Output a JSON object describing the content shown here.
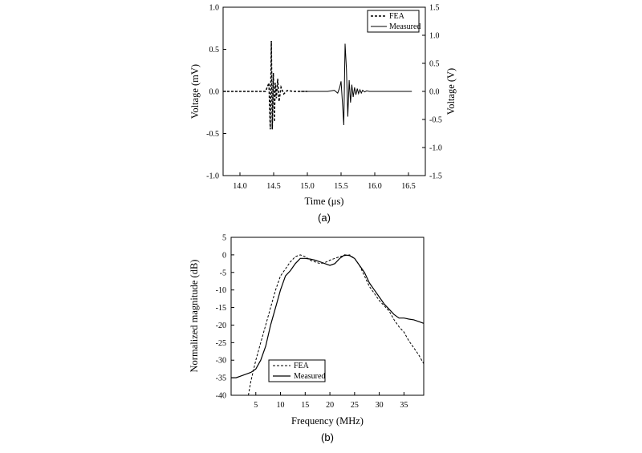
{
  "chart_data": [
    {
      "type": "line",
      "caption": "(a)",
      "xlabel": "Time (μs)",
      "ylabel_left": "Voltage (mV)",
      "ylabel_right": "Voltage (V)",
      "xlim": [
        13.75,
        16.75
      ],
      "ylim_left": [
        -1.0,
        1.0
      ],
      "ylim_right": [
        -1.5,
        1.5
      ],
      "xticks": [
        "14.0",
        "14.5",
        "15.0",
        "15.5",
        "16.0",
        "16.5"
      ],
      "yticks_left": [
        "-1.0",
        "-0.5",
        "0.0",
        "0.5",
        "1.0"
      ],
      "yticks_right": [
        "-1.5",
        "-1.0",
        "-0.5",
        "0.0",
        "0.5",
        "1.0",
        "1.5"
      ],
      "grid": false,
      "legend_position": "top-right",
      "series": [
        {
          "name": "FEA",
          "axis": "left",
          "style": "dashed",
          "x": [
            13.75,
            14.38,
            14.41,
            14.43,
            14.45,
            14.465,
            14.48,
            14.495,
            14.51,
            14.525,
            14.54,
            14.56,
            14.58,
            14.61,
            14.65,
            14.7,
            14.8,
            14.9,
            15.0
          ],
          "y": [
            0.0,
            0.0,
            0.06,
            0.1,
            -0.45,
            0.6,
            -0.45,
            0.22,
            -0.36,
            0.1,
            -0.08,
            0.15,
            -0.12,
            0.05,
            -0.03,
            0.01,
            0.0,
            0.0,
            0.0
          ]
        },
        {
          "name": "Measured",
          "axis": "right",
          "style": "solid",
          "x": [
            14.9,
            15.3,
            15.4,
            15.45,
            15.48,
            15.5,
            15.52,
            15.54,
            15.56,
            15.58,
            15.6,
            15.62,
            15.64,
            15.66,
            15.68,
            15.7,
            15.72,
            15.74,
            15.76,
            15.78,
            15.8,
            15.82,
            15.85,
            15.88,
            15.92,
            16.0,
            16.55
          ],
          "y": [
            0.0,
            0.0,
            0.02,
            -0.03,
            0.07,
            0.18,
            -0.2,
            -0.6,
            0.85,
            0.4,
            -0.45,
            0.2,
            -0.2,
            0.12,
            -0.1,
            0.07,
            -0.06,
            0.05,
            -0.04,
            0.03,
            -0.03,
            0.02,
            -0.01,
            0.01,
            0.0,
            0.0,
            0.0
          ]
        }
      ]
    },
    {
      "type": "line",
      "caption": "(b)",
      "xlabel": "Frequency (MHz)",
      "ylabel": "Normalized magnitude (dB)",
      "xlim": [
        0,
        39
      ],
      "ylim": [
        -40,
        5
      ],
      "xticks": [
        "5",
        "10",
        "15",
        "20",
        "25",
        "30",
        "35"
      ],
      "yticks": [
        "5",
        "0",
        "-5",
        "-10",
        "-15",
        "-20",
        "-25",
        "-30",
        "-35",
        "-40"
      ],
      "grid": false,
      "legend_position": "bottom-left",
      "series": [
        {
          "name": "FEA",
          "style": "dashed",
          "x": [
            3.5,
            4,
            5,
            6,
            7,
            8,
            9,
            10,
            11,
            12,
            13,
            14,
            15,
            16,
            17,
            18,
            19,
            20,
            21,
            22,
            23,
            24,
            25,
            26,
            27,
            28,
            29,
            30,
            31,
            32,
            33,
            34,
            35,
            36,
            37,
            38,
            39
          ],
          "y": [
            -40,
            -36,
            -30,
            -25,
            -20,
            -15,
            -10,
            -6,
            -4,
            -2,
            -0.5,
            0,
            -0.5,
            -1.5,
            -2,
            -2.5,
            -2.2,
            -1.5,
            -1,
            -0.5,
            -0.2,
            0,
            -1,
            -3,
            -6,
            -9,
            -11,
            -13,
            -14.5,
            -16,
            -18.5,
            -20.5,
            -22,
            -24.5,
            -26.5,
            -28.5,
            -31
          ]
        },
        {
          "name": "Measured",
          "style": "solid",
          "x": [
            0,
            1,
            2,
            3,
            4,
            5,
            6,
            7,
            8,
            9,
            10,
            11,
            12,
            13,
            14,
            15,
            16,
            17,
            18,
            19,
            20,
            21,
            22,
            23,
            24,
            25,
            26,
            27,
            28,
            29,
            30,
            31,
            32,
            33,
            34,
            35,
            36,
            37,
            38,
            39
          ],
          "y": [
            -35,
            -35,
            -34.5,
            -34,
            -33.5,
            -32.5,
            -30,
            -26,
            -20,
            -15,
            -10,
            -6,
            -4.5,
            -2.5,
            -1,
            -1,
            -1.2,
            -1.5,
            -2,
            -2.5,
            -3,
            -2.5,
            -1,
            0,
            -0.2,
            -1,
            -3,
            -5,
            -8,
            -10,
            -12,
            -14,
            -15.5,
            -17,
            -18,
            -18,
            -18.3,
            -18.5,
            -19,
            -19.5
          ]
        }
      ]
    }
  ]
}
